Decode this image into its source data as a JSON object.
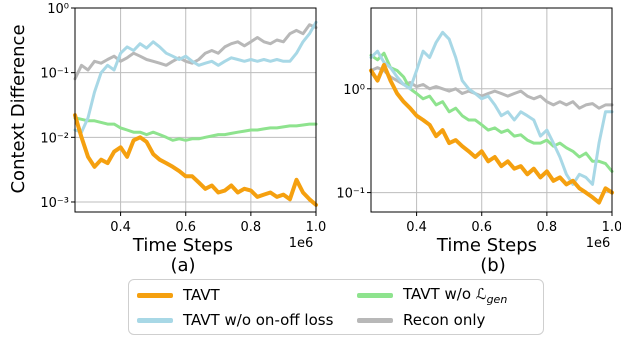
{
  "colors": {
    "TAVT": "#f5a00f",
    "TAVT w/o on-off loss": "#a8d8e6",
    "TAVT w/o gen": "#8ee38e",
    "Recon only": "#b8b8b8"
  },
  "legend": {
    "tavt": "TAVT",
    "no_onoff": "TAVT w/o on-off loss",
    "no_gen_prefix": "TAVT w/o ",
    "no_gen_symbol": "ℒ",
    "no_gen_subscript": "gen",
    "recon": "Recon only"
  },
  "chart_data": [
    {
      "type": "line",
      "panel_label": "(a)",
      "xlabel": "Time Steps",
      "ylabel": "Context Difference",
      "x_offset_label": "1e6",
      "xscale": "linear",
      "yscale": "log",
      "xlim": [
        0.26,
        1.0
      ],
      "ylim": [
        0.0007,
        1.0
      ],
      "xticks": [
        0.4,
        0.6,
        0.8,
        1.0
      ],
      "xtick_labels": [
        "0.4",
        "0.6",
        "0.8",
        "1.0"
      ],
      "yticks": [
        0.001,
        0.01,
        0.1,
        1.0
      ],
      "ytick_labels": [
        "10⁻³",
        "10⁻²",
        "10⁻¹",
        "10⁰"
      ],
      "grid": true,
      "x": [
        0.26,
        0.28,
        0.3,
        0.32,
        0.34,
        0.36,
        0.38,
        0.4,
        0.42,
        0.44,
        0.46,
        0.48,
        0.5,
        0.52,
        0.54,
        0.56,
        0.58,
        0.6,
        0.62,
        0.64,
        0.66,
        0.68,
        0.7,
        0.72,
        0.74,
        0.76,
        0.78,
        0.8,
        0.82,
        0.84,
        0.86,
        0.88,
        0.9,
        0.92,
        0.94,
        0.96,
        0.98,
        1.0
      ],
      "series": [
        {
          "name": "TAVT",
          "values": [
            0.022,
            0.01,
            0.005,
            0.0035,
            0.0045,
            0.004,
            0.006,
            0.007,
            0.005,
            0.009,
            0.01,
            0.0085,
            0.0055,
            0.0045,
            0.004,
            0.0035,
            0.003,
            0.0025,
            0.0025,
            0.002,
            0.0016,
            0.0018,
            0.0014,
            0.0015,
            0.0018,
            0.0014,
            0.0016,
            0.0015,
            0.0012,
            0.0013,
            0.0014,
            0.0012,
            0.0013,
            0.0011,
            0.0022,
            0.0014,
            0.0011,
            0.0009
          ]
        },
        {
          "name": "TAVT w/o on-off loss",
          "values": [
            0.013,
            0.012,
            0.02,
            0.05,
            0.1,
            0.13,
            0.11,
            0.2,
            0.25,
            0.22,
            0.28,
            0.24,
            0.3,
            0.25,
            0.2,
            0.18,
            0.16,
            0.18,
            0.15,
            0.13,
            0.14,
            0.15,
            0.13,
            0.15,
            0.17,
            0.16,
            0.15,
            0.16,
            0.15,
            0.16,
            0.15,
            0.16,
            0.15,
            0.15,
            0.2,
            0.3,
            0.4,
            0.6
          ]
        },
        {
          "name": "TAVT w/o gen",
          "values": [
            0.02,
            0.019,
            0.018,
            0.018,
            0.017,
            0.016,
            0.016,
            0.014,
            0.013,
            0.012,
            0.012,
            0.011,
            0.012,
            0.011,
            0.01,
            0.009,
            0.0095,
            0.009,
            0.0095,
            0.0095,
            0.01,
            0.0105,
            0.011,
            0.011,
            0.0115,
            0.012,
            0.0125,
            0.013,
            0.013,
            0.0135,
            0.014,
            0.014,
            0.0145,
            0.015,
            0.015,
            0.0155,
            0.016,
            0.016
          ]
        },
        {
          "name": "Recon only",
          "values": [
            0.08,
            0.13,
            0.11,
            0.15,
            0.14,
            0.16,
            0.18,
            0.15,
            0.17,
            0.2,
            0.18,
            0.16,
            0.15,
            0.14,
            0.13,
            0.15,
            0.17,
            0.15,
            0.14,
            0.16,
            0.2,
            0.22,
            0.2,
            0.25,
            0.28,
            0.3,
            0.26,
            0.3,
            0.35,
            0.3,
            0.28,
            0.32,
            0.3,
            0.4,
            0.45,
            0.4,
            0.55,
            0.5
          ]
        }
      ]
    },
    {
      "type": "line",
      "panel_label": "(b)",
      "xlabel": "Time Steps",
      "ylabel": "",
      "x_offset_label": "1e6",
      "xscale": "linear",
      "yscale": "log",
      "xlim": [
        0.26,
        1.0
      ],
      "ylim": [
        0.065,
        6.0
      ],
      "xticks": [
        0.4,
        0.6,
        0.8,
        1.0
      ],
      "xtick_labels": [
        "0.4",
        "0.6",
        "0.8",
        "1.0"
      ],
      "yticks": [
        0.1,
        1.0
      ],
      "ytick_labels": [
        "10⁻¹",
        "10⁰"
      ],
      "grid": true,
      "x": [
        0.26,
        0.28,
        0.3,
        0.32,
        0.34,
        0.36,
        0.38,
        0.4,
        0.42,
        0.44,
        0.46,
        0.48,
        0.5,
        0.52,
        0.54,
        0.56,
        0.58,
        0.6,
        0.62,
        0.64,
        0.66,
        0.68,
        0.7,
        0.72,
        0.74,
        0.76,
        0.78,
        0.8,
        0.82,
        0.84,
        0.86,
        0.88,
        0.9,
        0.92,
        0.94,
        0.96,
        0.98,
        1.0
      ],
      "series": [
        {
          "name": "TAVT",
          "values": [
            1.5,
            1.2,
            1.7,
            1.2,
            0.9,
            0.75,
            0.65,
            0.55,
            0.5,
            0.45,
            0.35,
            0.4,
            0.3,
            0.32,
            0.28,
            0.25,
            0.22,
            0.25,
            0.2,
            0.22,
            0.18,
            0.2,
            0.17,
            0.18,
            0.15,
            0.17,
            0.14,
            0.16,
            0.13,
            0.14,
            0.12,
            0.13,
            0.11,
            0.1,
            0.09,
            0.08,
            0.11,
            0.1
          ]
        },
        {
          "name": "TAVT w/o on-off loss",
          "values": [
            2.0,
            2.3,
            1.8,
            1.6,
            1.3,
            1.1,
            1.0,
            1.5,
            2.3,
            2.0,
            2.8,
            3.5,
            3.0,
            2.0,
            1.2,
            1.0,
            0.9,
            0.8,
            0.85,
            0.7,
            0.55,
            0.6,
            0.5,
            0.6,
            0.55,
            0.5,
            0.35,
            0.4,
            0.3,
            0.22,
            0.15,
            0.12,
            0.15,
            0.14,
            0.12,
            0.3,
            0.6,
            0.6
          ]
        },
        {
          "name": "TAVT w/o gen",
          "values": [
            2.1,
            1.9,
            2.2,
            1.6,
            1.5,
            1.3,
            1.0,
            0.9,
            0.8,
            0.85,
            0.7,
            0.75,
            0.6,
            0.65,
            0.55,
            0.5,
            0.5,
            0.45,
            0.4,
            0.42,
            0.38,
            0.4,
            0.35,
            0.36,
            0.32,
            0.3,
            0.3,
            0.32,
            0.28,
            0.3,
            0.27,
            0.25,
            0.22,
            0.24,
            0.2,
            0.2,
            0.19,
            0.16
          ]
        },
        {
          "name": "Recon only",
          "values": [
            1.5,
            1.6,
            1.5,
            1.3,
            1.2,
            1.1,
            1.15,
            1.05,
            1.1,
            1.0,
            1.05,
            1.0,
            0.95,
            1.0,
            0.9,
            0.95,
            0.9,
            0.85,
            0.9,
            0.95,
            0.9,
            0.85,
            0.9,
            0.95,
            0.85,
            0.8,
            0.85,
            0.75,
            0.7,
            0.75,
            0.7,
            0.75,
            0.65,
            0.7,
            0.72,
            0.65,
            0.7,
            0.7
          ]
        }
      ]
    }
  ]
}
